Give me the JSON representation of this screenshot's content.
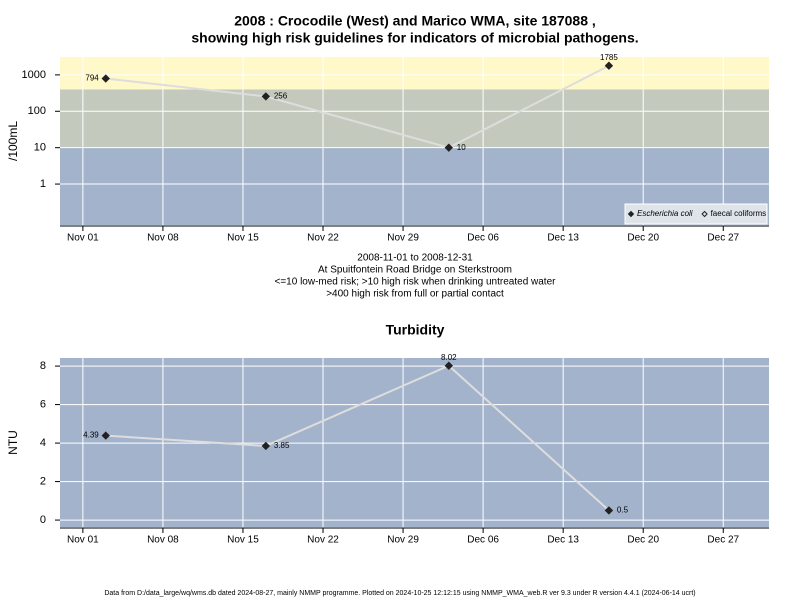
{
  "chart_data": [
    {
      "type": "line",
      "title": [
        "2008 : Crocodile (West) and Marico WMA, site 187088 ,",
        "showing high risk guidelines for indicators of microbial pathogens."
      ],
      "y_label": "/100mL",
      "log_y": true,
      "x": [
        "2008-11-03",
        "2008-11-17",
        "2008-12-03",
        "2008-12-17"
      ],
      "series": [
        {
          "name": "Escherichia coli",
          "color": "#222222",
          "line_color": "#dddddd",
          "marker": "filled-diamond",
          "values": [
            794,
            256,
            10,
            1785
          ]
        },
        {
          "name": "faecal coliforms",
          "color": "#222222",
          "line_color": "#dddddd",
          "marker": "open-diamond",
          "values": [
            null,
            null,
            null,
            null
          ]
        }
      ],
      "xlim": [
        "2008-10-30",
        "2008-12-31"
      ],
      "xticks": [
        {
          "value": "2008-11-01",
          "label": "Nov 01"
        },
        {
          "value": "2008-11-08",
          "label": "Nov 08"
        },
        {
          "value": "2008-11-15",
          "label": "Nov 15"
        },
        {
          "value": "2008-11-22",
          "label": "Nov 22"
        },
        {
          "value": "2008-11-29",
          "label": "Nov 29"
        },
        {
          "value": "2008-12-06",
          "label": "Dec 06"
        },
        {
          "value": "2008-12-13",
          "label": "Dec 13"
        },
        {
          "value": "2008-12-20",
          "label": "Dec 20"
        },
        {
          "value": "2008-12-27",
          "label": "Dec 27"
        }
      ],
      "ylim": [
        0.075,
        3100
      ],
      "yticks": [
        1,
        10,
        100,
        1000
      ],
      "thresholds": [
        10,
        400
      ],
      "band_colors": [
        "#a3b3cc",
        "#c3cabd",
        "#fff8c8"
      ],
      "grid": true,
      "legend": "bottom-right",
      "notes": [
        "2008-11-01 to 2008-12-31",
        "At Spuitfontein Road Bridge on Sterkstroom",
        "<=10 low-med risk; >10 high risk when drinking untreated water",
        ">400 high risk from full or partial contact"
      ]
    },
    {
      "type": "line",
      "title": [
        "Turbidity"
      ],
      "y_label": "NTU",
      "log_y": false,
      "x": [
        "2008-11-03",
        "2008-11-17",
        "2008-12-03",
        "2008-12-17"
      ],
      "series": [
        {
          "color": "#222222",
          "line_color": "#dddddd",
          "marker": "filled-diamond",
          "values": [
            4.39,
            3.85,
            8.02,
            0.5
          ]
        }
      ],
      "xlim": [
        "2008-10-30",
        "2008-12-31"
      ],
      "xticks": [
        {
          "value": "2008-11-01",
          "label": "Nov 01"
        },
        {
          "value": "2008-11-08",
          "label": "Nov 08"
        },
        {
          "value": "2008-11-15",
          "label": "Nov 15"
        },
        {
          "value": "2008-11-22",
          "label": "Nov 22"
        },
        {
          "value": "2008-11-29",
          "label": "Nov 29"
        },
        {
          "value": "2008-12-06",
          "label": "Dec 06"
        },
        {
          "value": "2008-12-13",
          "label": "Dec 13"
        },
        {
          "value": "2008-12-20",
          "label": "Dec 20"
        },
        {
          "value": "2008-12-27",
          "label": "Dec 27"
        }
      ],
      "ylim": [
        -0.36,
        8.42
      ],
      "yticks": [
        0,
        2,
        4,
        6,
        8
      ],
      "band_colors": [
        "#a3b3cc"
      ],
      "grid": true
    }
  ],
  "footer": "Data from D:/data_large/wq/wms.db dated 2024-08-27, mainly NMMP programme. Plotted on 2024-10-25 12:12:15 using NMMP_WMA_web.R ver 9.3 under R version 4.4.1 (2024-06-14 ucrt)"
}
